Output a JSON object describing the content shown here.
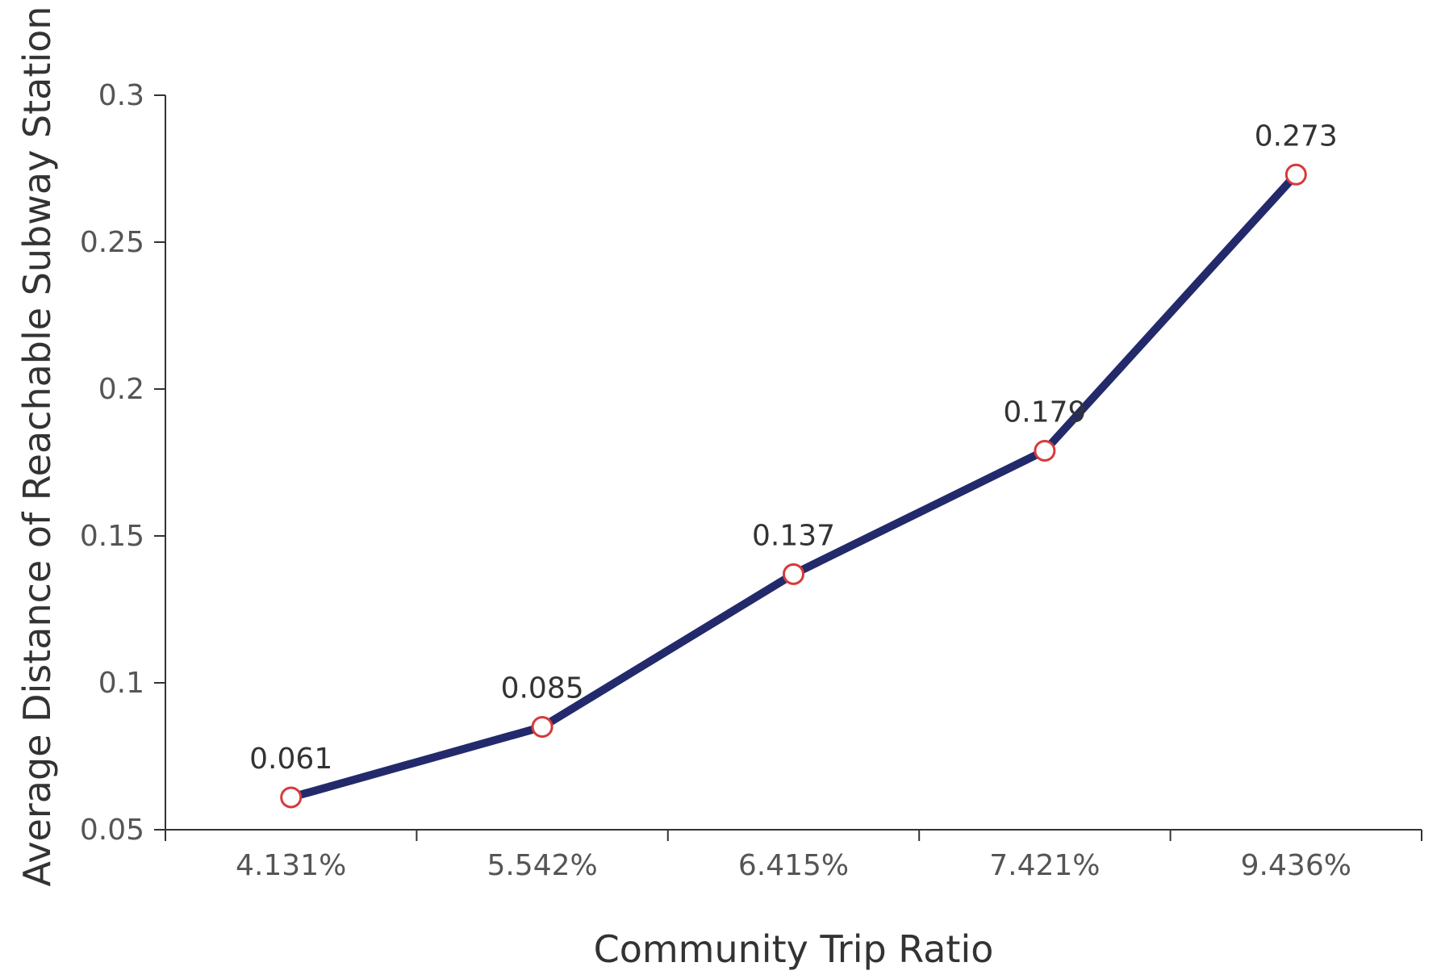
{
  "chart_data": {
    "type": "line",
    "title": "",
    "xlabel": "Community Trip Ratio",
    "ylabel": "Average Distance of Reachable Subway Station",
    "categories": [
      "4.131%",
      "5.542%",
      "6.415%",
      "7.421%",
      "9.436%"
    ],
    "series": [
      {
        "values": [
          0.061,
          0.085,
          0.137,
          0.179,
          0.273
        ],
        "data_labels": [
          "0.061",
          "0.085",
          "0.137",
          "0.179",
          "0.273"
        ]
      }
    ],
    "ylim": [
      0.05,
      0.3
    ],
    "yticks": [
      0.05,
      0.1,
      0.15,
      0.2,
      0.25,
      0.3
    ],
    "ytick_labels": [
      "0.05",
      "0.1",
      "0.15",
      "0.2",
      "0.25",
      "0.3"
    ],
    "grid": false,
    "legend": "none",
    "colors": {
      "line": "#232a6b",
      "marker_edge": "#d63a3a",
      "marker_fill": "#ffffff"
    }
  }
}
